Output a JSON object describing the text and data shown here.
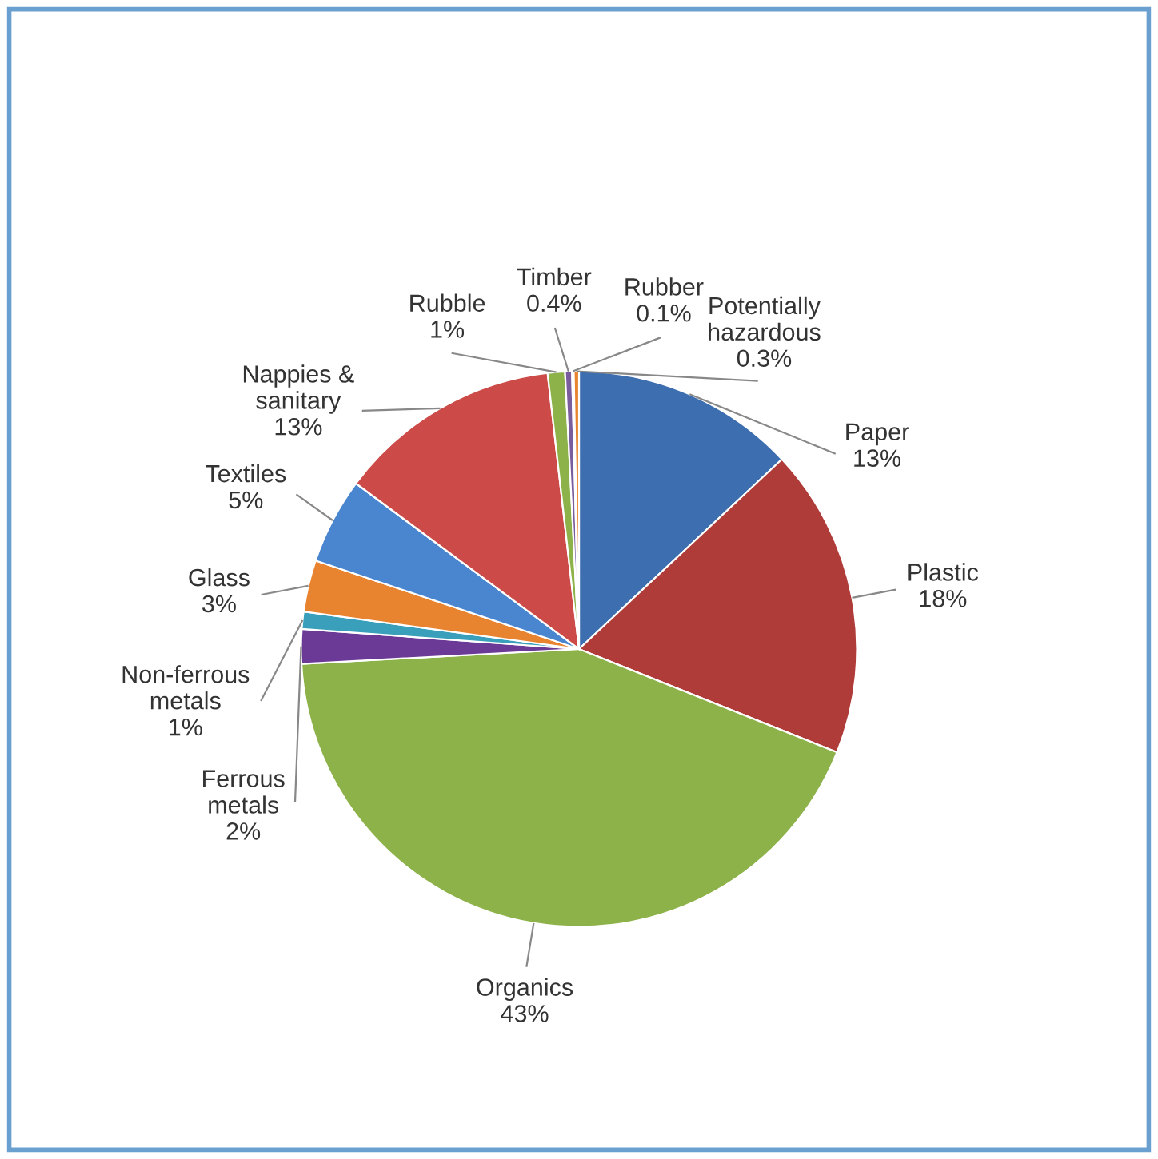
{
  "chart_data": {
    "type": "pie",
    "categories": [
      "Paper",
      "Plastic",
      "Organics",
      "Ferrous\nmetals",
      "Non-ferrous\nmetals",
      "Glass",
      "Textiles",
      "Nappies &\nsanitary",
      "Rubble",
      "Timber",
      "Rubber",
      "Potentially\nhazardous"
    ],
    "values": [
      13,
      18,
      43,
      2,
      1,
      3,
      5,
      13,
      1,
      0.4,
      0.1,
      0.3
    ],
    "value_labels": [
      "13%",
      "18%",
      "43%",
      "2%",
      "1%",
      "3%",
      "5%",
      "13%",
      "1%",
      "0.4%",
      "0.1%",
      "0.3%"
    ],
    "colors": [
      "#3d6eb0",
      "#b03c3a",
      "#8db24a",
      "#6b3a97",
      "#3a9fba",
      "#e8832f",
      "#4a86d0",
      "#cc4a48",
      "#8db24a",
      "#7a5d9c",
      "#3a9fba",
      "#e8832f"
    ],
    "legend": false
  }
}
